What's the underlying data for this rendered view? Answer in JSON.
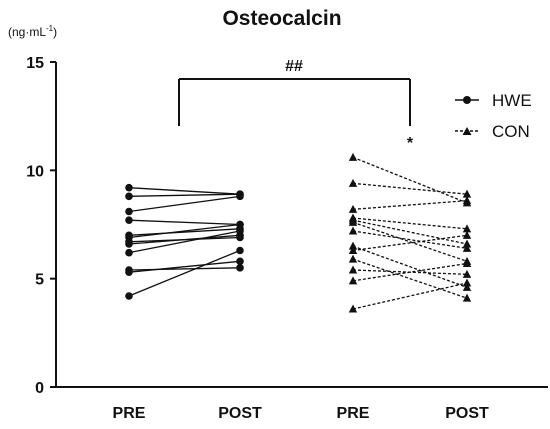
{
  "chart_data": {
    "type": "line",
    "title": "Osteocalcin",
    "ylabel": "(ng·mL",
    "ylabel_sup": "-1",
    "ylabel_close": ")",
    "ylim": [
      0,
      15
    ],
    "yticks": [
      "0",
      "5",
      "10",
      "15"
    ],
    "categories": [
      "PRE",
      "POST",
      "PRE",
      "POST"
    ],
    "legend": {
      "placement": "top-right",
      "entries": [
        "HWE",
        "CON"
      ]
    },
    "significance": {
      "bracket_label": "##",
      "star_label": "*"
    },
    "colors": {
      "lines": "#111111"
    },
    "series": [
      {
        "name": "HWE",
        "marker": "circle",
        "line": "solid",
        "pairs": [
          [
            9.2,
            8.9
          ],
          [
            8.8,
            8.9
          ],
          [
            8.1,
            8.8
          ],
          [
            7.7,
            7.5
          ],
          [
            7.0,
            7.3
          ],
          [
            6.9,
            7.5
          ],
          [
            6.7,
            6.9
          ],
          [
            6.6,
            7.0
          ],
          [
            6.2,
            7.2
          ],
          [
            5.4,
            5.5
          ],
          [
            5.3,
            5.8
          ],
          [
            4.2,
            6.3
          ]
        ]
      },
      {
        "name": "CON",
        "marker": "triangle",
        "line": "dashed",
        "pairs": [
          [
            10.6,
            8.5
          ],
          [
            9.4,
            8.9
          ],
          [
            8.2,
            8.6
          ],
          [
            7.8,
            7.3
          ],
          [
            7.7,
            6.6
          ],
          [
            7.6,
            5.8
          ],
          [
            7.2,
            6.4
          ],
          [
            6.5,
            4.6
          ],
          [
            6.3,
            7.0
          ],
          [
            5.9,
            4.1
          ],
          [
            5.4,
            5.2
          ],
          [
            4.9,
            5.7
          ],
          [
            3.6,
            4.8
          ]
        ]
      }
    ]
  }
}
